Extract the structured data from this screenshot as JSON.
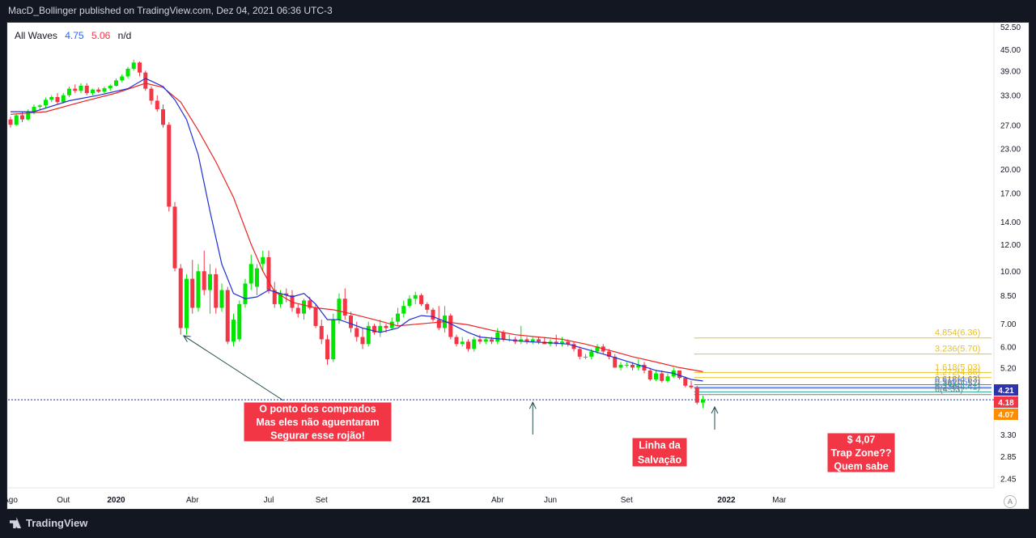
{
  "header": {
    "text": "MacD_Bollinger published on TradingView.com, Dez 04, 2021 06:36 UTC-3"
  },
  "legend": {
    "name": "All Waves",
    "v1": "4.75",
    "v2": "5.06",
    "v3": "n/d"
  },
  "footer": {
    "brand": "TradingView",
    "a_button": "A"
  },
  "colors": {
    "up": "#00e600",
    "down": "#f23645",
    "ema_fast": "#1e2fd6",
    "ema_slow": "#ee2222",
    "fib": "#e6c227",
    "annotation_bg": "#f23645"
  },
  "chart_data": {
    "type": "candlestick",
    "yscale": "log",
    "ylim": [
      2.3,
      54
    ],
    "y_ticks": [
      2.45,
      2.85,
      3.3,
      4.07,
      4.18,
      4.21,
      5.2,
      6.0,
      7.0,
      8.5,
      10.0,
      12.0,
      14.0,
      17.0,
      20.0,
      23.0,
      27.0,
      33.0,
      39.0,
      45.0,
      52.5
    ],
    "y_tick_labels": [
      "2.45",
      "2.85",
      "3.30",
      "4.07",
      "4.18",
      "4.21",
      "5.20",
      "6.00",
      "7.00",
      "8.50",
      "10.00",
      "12.00",
      "14.00",
      "17.00",
      "20.00",
      "23.00",
      "27.00",
      "33.00",
      "39.00",
      "45.00",
      "52.50"
    ],
    "x_labels": [
      {
        "label": "Ago",
        "t": 0
      },
      {
        "label": "Out",
        "t": 9
      },
      {
        "label": "2020",
        "t": 18
      },
      {
        "label": "Abr",
        "t": 31
      },
      {
        "label": "Jul",
        "t": 44
      },
      {
        "label": "Set",
        "t": 53
      },
      {
        "label": "2021",
        "t": 70
      },
      {
        "label": "Abr",
        "t": 83
      },
      {
        "label": "Jun",
        "t": 92
      },
      {
        "label": "Set",
        "t": 105
      },
      {
        "label": "2022",
        "t": 122
      },
      {
        "label": "Mar",
        "t": 131
      }
    ],
    "x_bold": [
      "2020",
      "2021",
      "2022"
    ],
    "t_max": 140,
    "price_tags": [
      {
        "value": 4.21,
        "label": "4.21",
        "color": "#2f35a8"
      },
      {
        "value": 4.18,
        "label": "4.18",
        "color": "#f23645"
      },
      {
        "value": 4.07,
        "label": "4.07",
        "color": "#ff8c00"
      }
    ],
    "candles": [
      [
        0,
        28,
        28.5,
        26.5,
        27
      ],
      [
        1,
        27,
        29,
        26.8,
        28.8
      ],
      [
        2,
        28.8,
        29.5,
        27.5,
        28
      ],
      [
        3,
        28,
        30,
        27.8,
        29.6
      ],
      [
        4,
        29.6,
        31,
        29,
        30.5
      ],
      [
        5,
        30.5,
        31,
        29.8,
        30.8
      ],
      [
        6,
        30.8,
        32.5,
        30.2,
        32
      ],
      [
        7,
        32,
        33,
        31.5,
        32.6
      ],
      [
        8,
        32.6,
        33.5,
        31,
        31.5
      ],
      [
        9,
        31.5,
        33.5,
        31.2,
        33
      ],
      [
        10,
        33,
        35,
        32.6,
        34.5
      ],
      [
        11,
        34.5,
        35.5,
        33.5,
        34
      ],
      [
        12,
        34,
        35.8,
        33.5,
        35.2
      ],
      [
        13,
        35.2,
        35.8,
        33,
        33.5
      ],
      [
        14,
        33.5,
        34.5,
        33,
        34.3
      ],
      [
        15,
        34.3,
        34.8,
        33.5,
        33.8
      ],
      [
        16,
        33.8,
        35,
        33.5,
        34.6
      ],
      [
        17,
        34.6,
        35.5,
        34,
        35.2
      ],
      [
        18,
        35.2,
        37,
        35,
        36.5
      ],
      [
        19,
        36.5,
        38,
        36,
        37.5
      ],
      [
        20,
        37.5,
        40,
        37,
        39.5
      ],
      [
        21,
        39.5,
        42,
        39,
        41.2
      ],
      [
        22,
        41.2,
        41.5,
        37.5,
        38.5
      ],
      [
        23,
        38.5,
        39,
        34,
        34.5
      ],
      [
        24,
        34.5,
        35,
        31,
        31.8
      ],
      [
        25,
        31.8,
        33,
        29.5,
        30
      ],
      [
        26,
        30,
        31,
        26.5,
        27
      ],
      [
        27,
        27,
        27.5,
        15,
        15.5
      ],
      [
        28,
        15.5,
        16,
        10,
        10.2
      ],
      [
        29,
        10.2,
        10.5,
        6.5,
        6.8
      ],
      [
        30,
        6.8,
        9.8,
        6.5,
        9.5
      ],
      [
        31,
        9.5,
        10.8,
        7.5,
        7.8
      ],
      [
        32,
        7.8,
        10.5,
        7.6,
        10
      ],
      [
        33,
        10,
        11.5,
        8.5,
        8.8
      ],
      [
        34,
        8.8,
        10.5,
        7.5,
        9.8
      ],
      [
        35,
        9.8,
        10.2,
        7.5,
        7.8
      ],
      [
        36,
        7.8,
        9.2,
        7.6,
        8.8
      ],
      [
        37,
        8.8,
        9,
        6.1,
        6.2
      ],
      [
        38,
        6.2,
        7.5,
        6,
        7.2
      ],
      [
        39,
        6.3,
        8.2,
        6.2,
        8
      ],
      [
        40,
        8,
        9.5,
        7.8,
        9.2
      ],
      [
        41,
        9.2,
        11.2,
        8.8,
        10.5
      ],
      [
        42,
        9,
        10.5,
        8.5,
        10.2
      ],
      [
        43,
        10.5,
        11.5,
        10,
        11
      ],
      [
        44,
        11,
        11.5,
        8.6,
        8.8
      ],
      [
        45,
        8.8,
        9.3,
        7.8,
        8
      ],
      [
        46,
        8,
        8.8,
        7.8,
        8.6
      ],
      [
        47,
        8.6,
        8.9,
        8.1,
        8.5
      ],
      [
        48,
        8.5,
        8.8,
        7.6,
        7.8
      ],
      [
        49,
        7.8,
        8,
        7.3,
        7.5
      ],
      [
        50,
        7.5,
        8.3,
        7.2,
        8.2
      ],
      [
        51,
        8.2,
        8.4,
        7.7,
        7.8
      ],
      [
        52,
        7.8,
        8,
        6.8,
        6.9
      ],
      [
        53,
        6.9,
        7.2,
        6.1,
        6.3
      ],
      [
        54,
        6.3,
        6.5,
        5.3,
        5.5
      ],
      [
        55,
        5.5,
        7.5,
        5.4,
        7.2
      ],
      [
        56,
        7.2,
        8.6,
        7,
        8.3
      ],
      [
        57,
        8.3,
        8.9,
        7.2,
        7.4
      ],
      [
        58,
        7.4,
        7.6,
        6.6,
        6.8
      ],
      [
        59,
        6.8,
        7.1,
        6.2,
        6.4
      ],
      [
        60,
        6.4,
        6.8,
        5.9,
        6.1
      ],
      [
        61,
        6.1,
        7.1,
        6,
        6.9
      ],
      [
        62,
        6.9,
        7,
        6.5,
        6.6
      ],
      [
        63,
        6.6,
        7.2,
        6.4,
        6.9
      ],
      [
        64,
        6.9,
        7,
        6.6,
        6.8
      ],
      [
        65,
        6.8,
        7.3,
        6.7,
        7.1
      ],
      [
        66,
        7.1,
        7.8,
        6.9,
        7.5
      ],
      [
        67,
        7.5,
        8.2,
        7.3,
        7.9
      ],
      [
        68,
        7.9,
        8.5,
        7.8,
        8.3
      ],
      [
        69,
        8.3,
        8.7,
        8,
        8.5
      ],
      [
        70,
        8.5,
        8.6,
        7.9,
        8
      ],
      [
        71,
        8,
        8.1,
        7.5,
        7.7
      ],
      [
        72,
        7.7,
        7.8,
        7.1,
        7.2
      ],
      [
        73,
        7.2,
        7.9,
        6.7,
        6.8
      ],
      [
        74,
        6.8,
        7.9,
        6.6,
        7.4
      ],
      [
        75,
        7.4,
        7.5,
        6.3,
        6.4
      ],
      [
        76,
        6.4,
        6.5,
        6,
        6.1
      ],
      [
        77,
        6.1,
        6.4,
        6,
        6.2
      ],
      [
        78,
        6.2,
        6.3,
        5.8,
        5.9
      ],
      [
        79,
        5.9,
        6.4,
        5.8,
        6.3
      ],
      [
        80,
        6.3,
        6.5,
        6.1,
        6.2
      ],
      [
        81,
        6.2,
        6.4,
        6.1,
        6.3
      ],
      [
        82,
        6.3,
        6.4,
        6.1,
        6.2
      ],
      [
        83,
        6.2,
        6.8,
        6.1,
        6.6
      ],
      [
        84,
        6.6,
        6.7,
        6.2,
        6.3
      ],
      [
        85,
        6.3,
        6.5,
        6.2,
        6.3
      ],
      [
        86,
        6.3,
        6.4,
        6.1,
        6.2
      ],
      [
        87,
        6.2,
        6.9,
        6.1,
        6.3
      ],
      [
        88,
        6.3,
        6.4,
        6.1,
        6.2
      ],
      [
        89,
        6.2,
        6.4,
        6.1,
        6.3
      ],
      [
        90,
        6.3,
        6.4,
        6.1,
        6.2
      ],
      [
        91,
        6.2,
        6.4,
        6.1,
        6.1
      ],
      [
        92,
        6.1,
        6.3,
        6,
        6.2
      ],
      [
        93,
        6.2,
        6.5,
        6,
        6.1
      ],
      [
        94,
        6.1,
        6.4,
        6,
        6.2
      ],
      [
        95,
        6.2,
        6.3,
        6,
        6.1
      ],
      [
        96,
        6.1,
        6.2,
        5.8,
        5.9
      ],
      [
        97,
        5.9,
        6,
        5.5,
        5.6
      ],
      [
        98,
        5.6,
        5.7,
        5.5,
        5.6
      ],
      [
        99,
        5.6,
        5.9,
        5.5,
        5.8
      ],
      [
        100,
        5.8,
        6.1,
        5.7,
        6
      ],
      [
        101,
        6,
        6.1,
        5.7,
        5.8
      ],
      [
        102,
        5.8,
        5.9,
        5.5,
        5.6
      ],
      [
        103,
        5.6,
        5.7,
        5.2,
        5.2
      ],
      [
        104,
        5.2,
        5.4,
        5.1,
        5.3
      ],
      [
        105,
        5.3,
        5.4,
        5.2,
        5.3
      ],
      [
        106,
        5.3,
        5.4,
        5.1,
        5.2
      ],
      [
        107,
        5.2,
        5.5,
        5.1,
        5.3
      ],
      [
        108,
        5.3,
        5.4,
        5,
        5.1
      ],
      [
        109,
        5.1,
        5.2,
        4.75,
        4.8
      ],
      [
        110,
        4.8,
        5.1,
        4.75,
        5
      ],
      [
        111,
        5,
        5.1,
        4.7,
        4.75
      ],
      [
        112,
        4.75,
        5,
        4.7,
        4.9
      ],
      [
        113,
        4.9,
        5.2,
        4.85,
        5.1
      ],
      [
        114,
        5.1,
        5.1,
        4.8,
        4.85
      ],
      [
        115,
        4.85,
        4.9,
        4.55,
        4.6
      ],
      [
        116,
        4.6,
        4.75,
        4.5,
        4.55
      ],
      [
        117,
        4.55,
        4.6,
        4.05,
        4.1
      ],
      [
        118,
        4.1,
        4.3,
        3.95,
        4.18
      ]
    ],
    "ema_fast": [
      [
        0,
        29.5
      ],
      [
        4,
        29.5
      ],
      [
        10,
        31.8
      ],
      [
        15,
        33
      ],
      [
        20,
        34.5
      ],
      [
        23,
        37
      ],
      [
        26,
        35
      ],
      [
        28,
        32
      ],
      [
        30,
        28
      ],
      [
        32,
        22
      ],
      [
        34,
        15
      ],
      [
        36,
        10.5
      ],
      [
        38,
        8.6
      ],
      [
        40,
        8.3
      ],
      [
        42,
        8.4
      ],
      [
        44,
        8.8
      ],
      [
        46,
        8.6
      ],
      [
        48,
        8.4
      ],
      [
        50,
        8.6
      ],
      [
        52,
        8
      ],
      [
        54,
        7.2
      ],
      [
        56,
        7.2
      ],
      [
        58,
        7
      ],
      [
        60,
        6.8
      ],
      [
        63,
        6.6
      ],
      [
        66,
        6.8
      ],
      [
        68,
        7.2
      ],
      [
        70,
        7.4
      ],
      [
        72,
        7.35
      ],
      [
        75,
        7
      ],
      [
        78,
        6.6
      ],
      [
        80,
        6.4
      ],
      [
        84,
        6.3
      ],
      [
        88,
        6.2
      ],
      [
        92,
        6.15
      ],
      [
        95,
        6.1
      ],
      [
        98,
        5.9
      ],
      [
        101,
        5.7
      ],
      [
        104,
        5.5
      ],
      [
        107,
        5.3
      ],
      [
        110,
        5.1
      ],
      [
        113,
        5
      ],
      [
        116,
        4.8
      ],
      [
        118,
        4.75
      ]
    ],
    "ema_slow": [
      [
        0,
        29
      ],
      [
        6,
        29.5
      ],
      [
        12,
        31.5
      ],
      [
        18,
        33.5
      ],
      [
        23,
        35.8
      ],
      [
        26,
        34.8
      ],
      [
        29,
        31.5
      ],
      [
        32,
        26
      ],
      [
        35,
        21
      ],
      [
        38,
        16.5
      ],
      [
        41,
        12
      ],
      [
        43,
        10
      ],
      [
        45,
        8.7
      ],
      [
        48,
        8.1
      ],
      [
        52,
        7.8
      ],
      [
        55,
        7.7
      ],
      [
        58,
        7.5
      ],
      [
        62,
        7.2
      ],
      [
        66,
        6.9
      ],
      [
        70,
        7
      ],
      [
        74,
        7.1
      ],
      [
        78,
        6.95
      ],
      [
        82,
        6.7
      ],
      [
        86,
        6.5
      ],
      [
        90,
        6.4
      ],
      [
        94,
        6.3
      ],
      [
        98,
        6.1
      ],
      [
        102,
        5.85
      ],
      [
        106,
        5.6
      ],
      [
        110,
        5.4
      ],
      [
        114,
        5.2
      ],
      [
        118,
        5.06
      ]
    ],
    "fib_levels": [
      {
        "value": 6.36,
        "label": "4.854(6.36)",
        "color": "#e6c227"
      },
      {
        "value": 5.7,
        "label": "3.236(5.70)",
        "color": "#e6c227"
      },
      {
        "value": 5.03,
        "label": "1.618(5.03)",
        "color": "#e6c227"
      },
      {
        "value": 4.86,
        "label": "1.272(4.86)",
        "color": "#e6c227"
      },
      {
        "value": 4.63,
        "label": "0.618(4.63)",
        "color": "#787b86"
      },
      {
        "value": 4.55,
        "label": "0.5(4.55)",
        "color": "#5b8cff"
      },
      {
        "value": 4.52,
        "label": "0.382(4.52)",
        "color": "#787b86"
      },
      {
        "value": 4.41,
        "label": "0.236(4.41)",
        "color": "#26a69a"
      },
      {
        "value": 4.33,
        "label": "0(4.33)",
        "color": "#787b86"
      }
    ],
    "horizontal_line": {
      "value": 4.18
    },
    "annotations": [
      {
        "lines": [
          "O ponto dos comprados",
          "Mas eles não aguentaram",
          "Segurar esse rojão!"
        ],
        "arrow_to": [
          29.5,
          6.6
        ]
      },
      {
        "lines": [
          "Linha da",
          "Salvação"
        ],
        "arrow_to": [
          89,
          4.2
        ]
      },
      {
        "lines": [
          "$ 4,07",
          "Trap Zone??",
          "Quem sabe"
        ],
        "arrow_to": [
          120,
          4.07
        ]
      }
    ]
  }
}
